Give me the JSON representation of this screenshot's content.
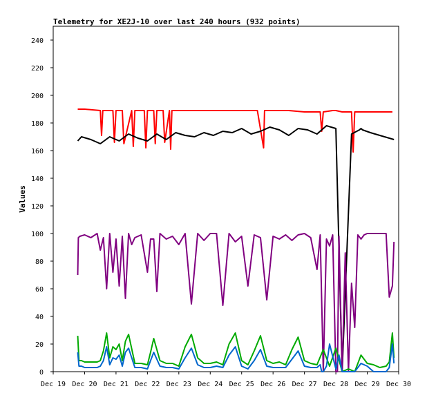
{
  "chart_data": {
    "type": "line",
    "title": "Telemetry for XE2J-10 over last 240 hours (932 points)",
    "xlabel": "",
    "ylabel": "Values",
    "x_ticks": [
      "Dec 19",
      "Dec 20",
      "Dec 21",
      "Dec 22",
      "Dec 23",
      "Dec 24",
      "Dec 25",
      "Dec 26",
      "Dec 27",
      "Dec 28",
      "Dec 29",
      "Dec 30"
    ],
    "xlim": [
      0,
      11
    ],
    "ylim": [
      0,
      250
    ],
    "y_ticks": [
      0,
      20,
      40,
      60,
      80,
      100,
      120,
      140,
      160,
      180,
      200,
      220,
      240
    ],
    "grid": false,
    "series": [
      {
        "color": "#ff0000",
        "x": [
          0.78,
          1.0,
          1.5,
          1.54,
          1.58,
          1.9,
          1.95,
          2.0,
          2.2,
          2.25,
          2.5,
          2.55,
          2.6,
          2.9,
          2.95,
          3.0,
          3.2,
          3.25,
          3.3,
          3.5,
          3.55,
          3.7,
          3.74,
          3.78,
          4.0,
          4.5,
          5.0,
          5.5,
          6.0,
          6.5,
          6.7,
          6.73,
          6.76,
          7.0,
          7.5,
          8.0,
          8.5,
          8.55,
          8.6,
          8.9,
          9.0,
          9.2,
          9.5,
          9.55,
          9.6,
          10.0,
          10.5,
          10.8
        ],
        "values": [
          190,
          190,
          189,
          171,
          189,
          189,
          166,
          189,
          189,
          165,
          189,
          163,
          189,
          189,
          162,
          189,
          189,
          165,
          189,
          189,
          166,
          189,
          161,
          189,
          189,
          189,
          189,
          189,
          189,
          189,
          162,
          189,
          189,
          189,
          189,
          188,
          188,
          174,
          188,
          189,
          189,
          188,
          188,
          159,
          188,
          188,
          188,
          188
        ]
      },
      {
        "color": "#000000",
        "x": [
          0.78,
          0.9,
          1.2,
          1.5,
          1.8,
          2.1,
          2.4,
          2.7,
          3.0,
          3.3,
          3.6,
          3.9,
          4.2,
          4.5,
          4.8,
          5.1,
          5.4,
          5.7,
          6.0,
          6.3,
          6.6,
          6.9,
          7.2,
          7.5,
          7.8,
          8.1,
          8.4,
          8.7,
          9.0,
          9.2,
          9.5,
          9.75,
          9.8,
          9.85,
          10.1,
          10.4,
          10.7,
          10.85
        ],
        "values": [
          167,
          170,
          168,
          165,
          170,
          167,
          172,
          169,
          167,
          172,
          168,
          173,
          171,
          170,
          173,
          171,
          174,
          173,
          176,
          172,
          174,
          177,
          175,
          171,
          176,
          175,
          172,
          178,
          176,
          0,
          172,
          175,
          176,
          175,
          173,
          171,
          169,
          168
        ]
      },
      {
        "color": "#800080",
        "x": [
          0.78,
          0.8,
          0.85,
          1.0,
          1.2,
          1.4,
          1.5,
          1.6,
          1.7,
          1.8,
          1.9,
          2.0,
          2.1,
          2.2,
          2.3,
          2.4,
          2.5,
          2.6,
          2.8,
          3.0,
          3.1,
          3.2,
          3.3,
          3.4,
          3.6,
          3.8,
          4.0,
          4.2,
          4.4,
          4.6,
          4.8,
          5.0,
          5.2,
          5.4,
          5.6,
          5.8,
          6.0,
          6.2,
          6.4,
          6.6,
          6.8,
          7.0,
          7.2,
          7.4,
          7.6,
          7.8,
          8.0,
          8.2,
          8.4,
          8.5,
          8.6,
          8.7,
          8.8,
          8.9,
          9.0,
          9.05,
          9.1,
          9.2,
          9.3,
          9.4,
          9.5,
          9.6,
          9.7,
          9.8,
          9.9,
          10.0,
          10.2,
          10.4,
          10.6,
          10.7,
          10.8,
          10.85
        ],
        "values": [
          70,
          97,
          98,
          99,
          97,
          100,
          88,
          97,
          60,
          100,
          72,
          96,
          62,
          98,
          53,
          100,
          92,
          97,
          99,
          72,
          96,
          96,
          58,
          100,
          96,
          98,
          92,
          100,
          49,
          100,
          95,
          100,
          100,
          48,
          100,
          94,
          98,
          62,
          99,
          97,
          52,
          98,
          96,
          99,
          95,
          99,
          100,
          97,
          74,
          99,
          0,
          96,
          91,
          99,
          0,
          0,
          98,
          0,
          86,
          0,
          64,
          32,
          99,
          96,
          99,
          100,
          100,
          100,
          100,
          54,
          62,
          94
        ]
      },
      {
        "color": "#00aa00",
        "x": [
          0.78,
          0.82,
          0.9,
          1.0,
          1.2,
          1.4,
          1.5,
          1.6,
          1.7,
          1.8,
          1.9,
          2.0,
          2.1,
          2.2,
          2.3,
          2.4,
          2.6,
          2.8,
          3.0,
          3.1,
          3.2,
          3.4,
          3.6,
          3.8,
          4.0,
          4.2,
          4.4,
          4.6,
          4.8,
          5.0,
          5.2,
          5.4,
          5.6,
          5.8,
          6.0,
          6.2,
          6.4,
          6.6,
          6.8,
          7.0,
          7.2,
          7.4,
          7.6,
          7.8,
          8.0,
          8.2,
          8.4,
          8.6,
          8.8,
          9.0,
          9.2,
          9.4,
          9.6,
          9.8,
          10.0,
          10.2,
          10.4,
          10.6,
          10.7,
          10.8,
          10.85
        ],
        "values": [
          26,
          8,
          8,
          7,
          7,
          7,
          8,
          15,
          28,
          10,
          18,
          16,
          20,
          8,
          22,
          27,
          6,
          6,
          5,
          14,
          24,
          8,
          6,
          6,
          4,
          18,
          27,
          10,
          6,
          6,
          7,
          5,
          20,
          28,
          8,
          5,
          15,
          26,
          8,
          6,
          7,
          5,
          16,
          25,
          8,
          6,
          5,
          16,
          4,
          17,
          0,
          2,
          0,
          12,
          6,
          5,
          3,
          4,
          7,
          28,
          10
        ]
      },
      {
        "color": "#0066cc",
        "x": [
          0.78,
          0.82,
          0.9,
          1.0,
          1.2,
          1.4,
          1.5,
          1.6,
          1.7,
          1.8,
          1.9,
          2.0,
          2.1,
          2.2,
          2.3,
          2.4,
          2.6,
          2.8,
          3.0,
          3.1,
          3.2,
          3.4,
          3.6,
          3.8,
          4.0,
          4.2,
          4.4,
          4.6,
          4.8,
          5.0,
          5.2,
          5.4,
          5.6,
          5.8,
          6.0,
          6.2,
          6.4,
          6.6,
          6.8,
          7.0,
          7.2,
          7.4,
          7.6,
          7.8,
          8.0,
          8.2,
          8.4,
          8.5,
          8.55,
          8.6,
          8.7,
          8.8,
          9.0,
          9.1,
          9.2,
          9.4,
          9.6,
          9.8,
          10.0,
          10.2,
          10.4,
          10.6,
          10.7,
          10.8,
          10.85
        ],
        "values": [
          14,
          4,
          4,
          3,
          3,
          3,
          4,
          8,
          18,
          5,
          10,
          9,
          12,
          4,
          14,
          17,
          3,
          3,
          2,
          8,
          14,
          4,
          3,
          3,
          2,
          10,
          17,
          5,
          3,
          3,
          4,
          3,
          12,
          18,
          4,
          2,
          8,
          16,
          4,
          3,
          3,
          3,
          9,
          15,
          4,
          3,
          3,
          5,
          0,
          0,
          4,
          20,
          2,
          12,
          0,
          0,
          0,
          6,
          4,
          0,
          0,
          0,
          3,
          20,
          6
        ]
      }
    ]
  }
}
